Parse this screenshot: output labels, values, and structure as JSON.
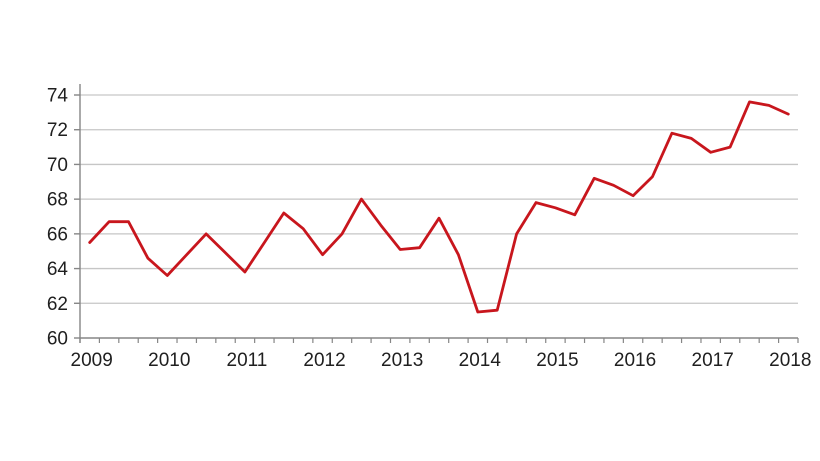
{
  "chart_data": {
    "type": "line",
    "title": "",
    "xlabel": "",
    "ylabel": "",
    "frequency": "quarterly",
    "categories": [
      "2009",
      "2010",
      "2011",
      "2012",
      "2013",
      "2014",
      "2015",
      "2016",
      "2017",
      "2018"
    ],
    "x_start": "2009 Q1",
    "x_end": "2018 Q1",
    "values": [
      65.5,
      66.7,
      66.7,
      64.6,
      63.6,
      64.8,
      66.0,
      64.9,
      63.8,
      65.5,
      67.2,
      66.3,
      64.8,
      66.0,
      68.0,
      66.5,
      65.1,
      65.2,
      66.9,
      64.8,
      61.5,
      61.6,
      66.0,
      67.8,
      67.5,
      67.1,
      69.2,
      68.8,
      68.2,
      69.3,
      71.8,
      71.5,
      70.7,
      71.0,
      73.6,
      73.4,
      72.9
    ],
    "y_ticks": [
      60,
      62,
      64,
      66,
      68,
      70,
      72,
      74
    ],
    "ylim": [
      60,
      74
    ],
    "grid": true,
    "legend": "none",
    "colors": {
      "line": "#c8161d",
      "gridline": "#c6c6c6",
      "axis": "#868686",
      "tick_label": "#1f1f1f",
      "background": "#ffffff"
    }
  }
}
